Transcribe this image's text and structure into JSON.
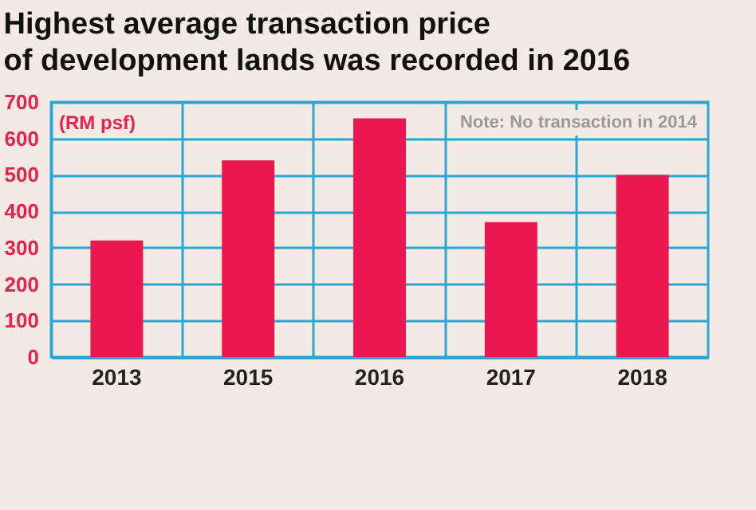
{
  "chart_data": {
    "type": "bar",
    "title": "Highest average transaction price\nof development lands was recorded in 2016",
    "ylabel": "(RM psf)",
    "annotations": [
      "Note: No transaction in 2014"
    ],
    "categories": [
      "2013",
      "2015",
      "2016",
      "2017",
      "2018"
    ],
    "values": [
      320,
      540,
      655,
      370,
      500
    ],
    "color": "#ec1651",
    "ylim": [
      0,
      700
    ],
    "yticks": [
      0,
      100,
      200,
      300,
      400,
      500,
      600,
      700
    ],
    "grid": true
  }
}
